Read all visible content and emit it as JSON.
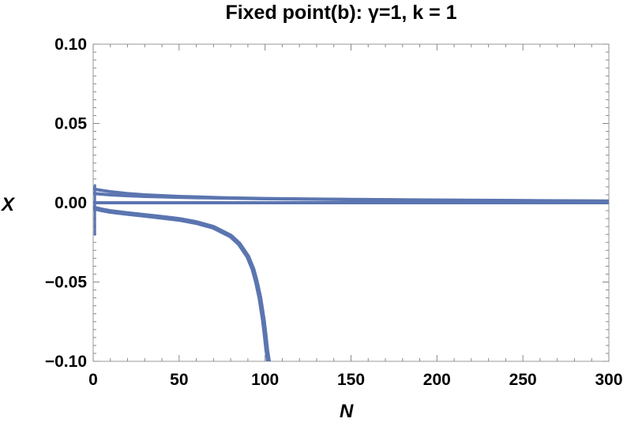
{
  "chart_data": {
    "type": "line",
    "title": "Fixed point(b): γ=1, k = 1",
    "xlabel": "N",
    "ylabel": "X",
    "xlim": [
      0,
      300
    ],
    "ylim": [
      -0.1,
      0.1
    ],
    "x_ticks": [
      0,
      50,
      100,
      150,
      200,
      250,
      300
    ],
    "x_tick_labels": [
      "0",
      "50",
      "100",
      "150",
      "200",
      "250",
      "300"
    ],
    "y_ticks": [
      -0.1,
      -0.05,
      0.0,
      0.05,
      0.1
    ],
    "y_tick_labels": [
      "−0.10",
      "−0.05",
      "0.00",
      "0.05",
      "0.10"
    ],
    "grid": false,
    "line_color": "#5b75b0",
    "series": [
      {
        "x": [
          0,
          1,
          5,
          10,
          20,
          30,
          50,
          75,
          100,
          150,
          200,
          250,
          300
        ],
        "y": [
          0.009,
          0.0085,
          0.0078,
          0.007,
          0.0058,
          0.005,
          0.004,
          0.0032,
          0.0027,
          0.0021,
          0.0017,
          0.0014,
          0.0011
        ]
      },
      {
        "x": [
          0,
          1,
          5,
          10,
          20,
          30,
          50,
          75,
          100,
          150,
          200,
          250,
          300
        ],
        "y": [
          0.006,
          0.0058,
          0.0054,
          0.005,
          0.0044,
          0.004,
          0.0034,
          0.0029,
          0.0025,
          0.002,
          0.0016,
          0.0013,
          0.001
        ]
      },
      {
        "x": [
          0,
          300
        ],
        "y": [
          0.0,
          0.0
        ]
      },
      {
        "x": [
          0,
          1,
          5,
          10,
          20,
          30,
          40,
          50,
          60,
          70,
          80,
          85,
          90,
          93,
          95,
          97,
          99,
          100,
          101,
          102
        ],
        "y": [
          -0.003,
          -0.0035,
          -0.0045,
          -0.0055,
          -0.0068,
          -0.008,
          -0.0092,
          -0.0105,
          -0.0125,
          -0.0155,
          -0.021,
          -0.026,
          -0.034,
          -0.042,
          -0.05,
          -0.06,
          -0.074,
          -0.083,
          -0.093,
          -0.1
        ]
      },
      {
        "x": [
          1,
          1
        ],
        "y": [
          0.011,
          -0.02
        ]
      }
    ]
  }
}
